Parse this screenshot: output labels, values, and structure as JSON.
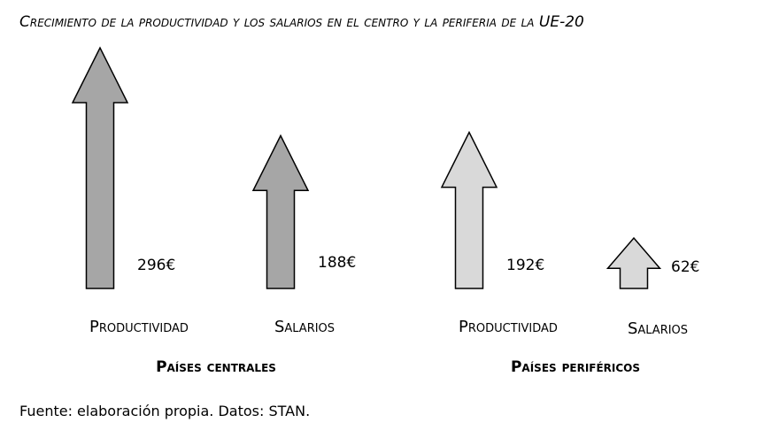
{
  "chart_data": {
    "type": "bar",
    "title": "Crecimiento de la productividad y los salarios en el centro y la periferia de la UE-20",
    "groups": [
      {
        "label": "Países centrales",
        "bars": [
          {
            "category": "Productividad",
            "value": 296,
            "label": "296€",
            "color": "#a6a6a6"
          },
          {
            "category": "Salarios",
            "value": 188,
            "label": "188€",
            "color": "#a6a6a6"
          }
        ]
      },
      {
        "label": "Países periféricos",
        "bars": [
          {
            "category": "Productividad",
            "value": 192,
            "label": "192€",
            "color": "#d9d9d9"
          },
          {
            "category": "Salarios",
            "value": 62,
            "label": "62€",
            "color": "#d9d9d9"
          }
        ]
      }
    ],
    "grid": false,
    "legend": "none"
  },
  "source": "Fuente: elaboración propia. Datos: STAN."
}
